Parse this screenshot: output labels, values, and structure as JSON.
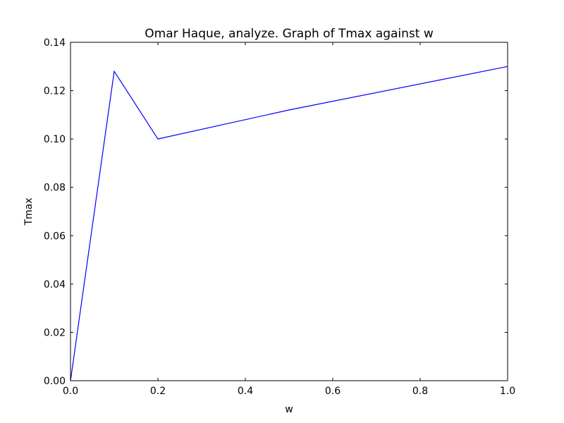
{
  "chart_data": {
    "type": "line",
    "title": "Omar Haque, analyze. Graph of Tmax against w",
    "xlabel": "w",
    "ylabel": "Tmax",
    "xlim": [
      0.0,
      1.0
    ],
    "ylim": [
      0.0,
      0.14
    ],
    "xticks": [
      "0.0",
      "0.2",
      "0.4",
      "0.6",
      "0.8",
      "1.0"
    ],
    "yticks": [
      "0.00",
      "0.02",
      "0.04",
      "0.06",
      "0.08",
      "0.10",
      "0.12",
      "0.14"
    ],
    "grid": false,
    "series": [
      {
        "color": "#0000ff",
        "x": [
          0.0,
          0.1,
          0.2,
          0.5,
          1.0
        ],
        "y": [
          0.0,
          0.128,
          0.1,
          0.112,
          0.13
        ]
      }
    ]
  }
}
